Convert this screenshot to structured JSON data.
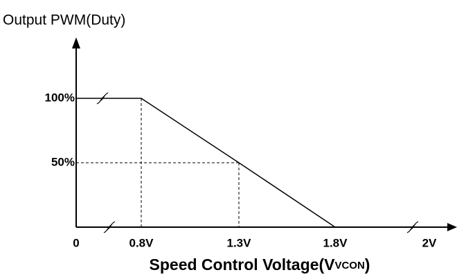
{
  "chart_data": {
    "type": "line",
    "title": "Output PWM(Duty)",
    "xlabel": [
      "Speed Control Voltage(V",
      "VCON",
      ")"
    ],
    "x": [
      0,
      0.8,
      1.3,
      1.8,
      2
    ],
    "series": [
      {
        "name": "PWM Duty",
        "color": "#000000",
        "values": [
          100,
          100,
          50,
          0,
          0
        ]
      }
    ],
    "xlim": [
      0,
      2
    ],
    "xticks": [
      0,
      {
        "value": 0.8,
        "label": "0.8V"
      },
      {
        "value": 1.3,
        "label": "1.3V"
      },
      {
        "value": 1.8,
        "label": "1.8V"
      },
      {
        "value": 2,
        "label": "2V"
      }
    ],
    "ylim": [
      0,
      100
    ],
    "yticks": [
      {
        "value": 50,
        "label": "50%"
      },
      {
        "value": 100,
        "label": "100%"
      }
    ],
    "grid": false
  }
}
